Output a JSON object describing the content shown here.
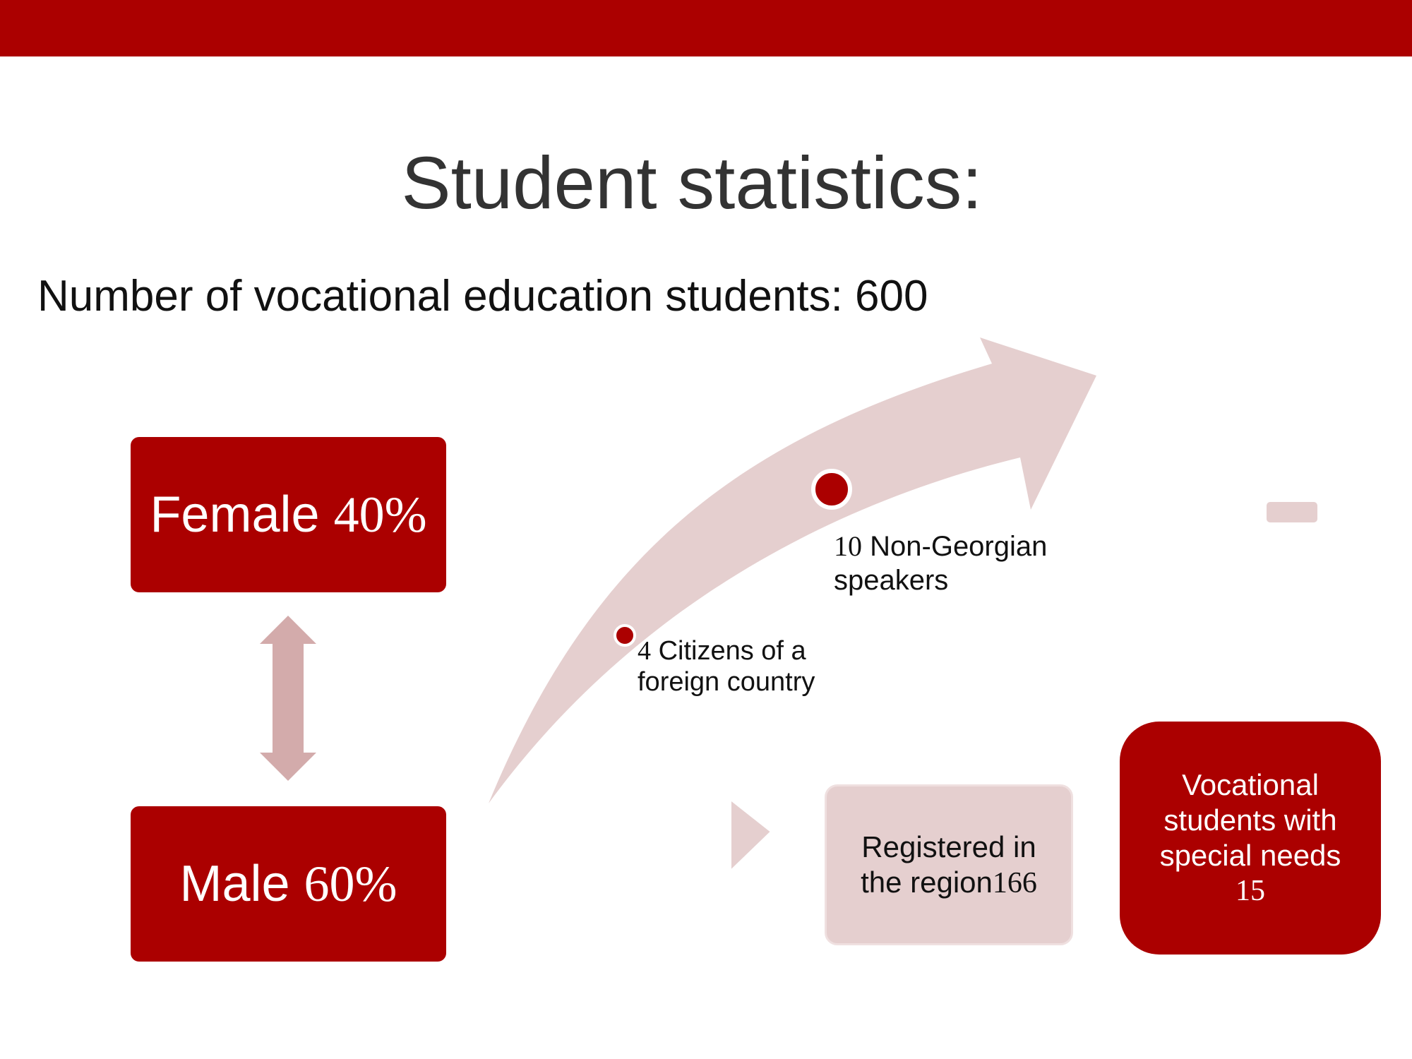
{
  "colors": {
    "brand_red": "#ab0000",
    "pale_pink": "#e5cfcf",
    "mid_pink": "#d3abab",
    "title_gray": "#333333"
  },
  "header": {
    "title": "Student statistics:"
  },
  "summary": {
    "text": "Number of vocational education students: 600"
  },
  "gender": {
    "female": {
      "label": "Female",
      "value": "40%"
    },
    "male": {
      "label": "Male",
      "value": "60%"
    },
    "connector_icon": "double-headed-vertical-arrow"
  },
  "growth_arrow": {
    "icon": "curved-up-arrow",
    "milestones": [
      {
        "number": "4",
        "text": "Citizens of a foreign country"
      },
      {
        "number": "10",
        "text": "Non-Georgian speakers"
      }
    ]
  },
  "registered": {
    "text": "Registered in the region",
    "value": "166"
  },
  "special_needs": {
    "text": "Vocational students with special needs",
    "value": "15"
  }
}
